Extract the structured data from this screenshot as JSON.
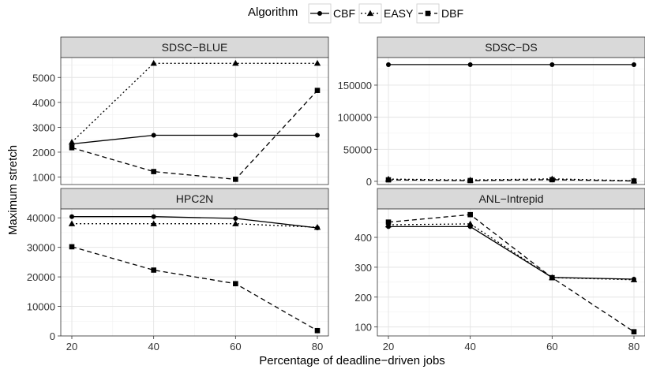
{
  "figure": {
    "ylabel": "Maximum stretch",
    "xlabel": "Percentage of deadline−driven jobs",
    "legend_title": "Algorithm",
    "legend_placement": "top"
  },
  "chart_data": [
    {
      "type": "line",
      "title": "SDSC−BLUE",
      "x": [
        20,
        40,
        60,
        80
      ],
      "xticks": [
        "20",
        "40",
        "60",
        "80"
      ],
      "ylim": [
        700,
        5800
      ],
      "yticks": [
        1000,
        2000,
        3000,
        4000,
        5000
      ],
      "grid": true,
      "series": [
        {
          "name": "CBF",
          "values": [
            2330,
            2680,
            2680,
            2680
          ]
        },
        {
          "name": "EASY",
          "values": [
            2400,
            5570,
            5570,
            5570
          ]
        },
        {
          "name": "DBF",
          "values": [
            2180,
            1220,
            910,
            4480
          ]
        }
      ]
    },
    {
      "type": "line",
      "title": "SDSC−DS",
      "x": [
        20,
        40,
        60,
        80
      ],
      "xticks": [
        "20",
        "40",
        "60",
        "80"
      ],
      "ylim": [
        -5000,
        193000
      ],
      "yticks": [
        0,
        50000,
        100000,
        150000
      ],
      "grid": true,
      "series": [
        {
          "name": "CBF",
          "values": [
            182000,
            182000,
            182000,
            182000
          ]
        },
        {
          "name": "EASY",
          "values": [
            3500,
            2000,
            3800,
            900
          ]
        },
        {
          "name": "DBF",
          "values": [
            2300,
            1200,
            2500,
            500
          ]
        }
      ]
    },
    {
      "type": "line",
      "title": "HPC2N",
      "x": [
        20,
        40,
        60,
        80
      ],
      "xticks": [
        "20",
        "40",
        "60",
        "80"
      ],
      "ylim": [
        0,
        43000
      ],
      "yticks": [
        0,
        10000,
        20000,
        30000,
        40000
      ],
      "grid": true,
      "series": [
        {
          "name": "CBF",
          "values": [
            40400,
            40400,
            39800,
            36600
          ]
        },
        {
          "name": "EASY",
          "values": [
            38000,
            38000,
            38000,
            36800
          ]
        },
        {
          "name": "DBF",
          "values": [
            30200,
            22300,
            17700,
            1800
          ]
        }
      ]
    },
    {
      "type": "line",
      "title": "ANL−Intrepid",
      "x": [
        20,
        40,
        60,
        80
      ],
      "xticks": [
        "20",
        "40",
        "60",
        "80"
      ],
      "ylim": [
        70,
        495
      ],
      "yticks": [
        100,
        200,
        300,
        400
      ],
      "grid": true,
      "series": [
        {
          "name": "CBF",
          "values": [
            436,
            436,
            266,
            260
          ]
        },
        {
          "name": "EASY",
          "values": [
            442,
            445,
            265,
            258
          ]
        },
        {
          "name": "DBF",
          "values": [
            451,
            476,
            265,
            84
          ]
        }
      ]
    }
  ]
}
